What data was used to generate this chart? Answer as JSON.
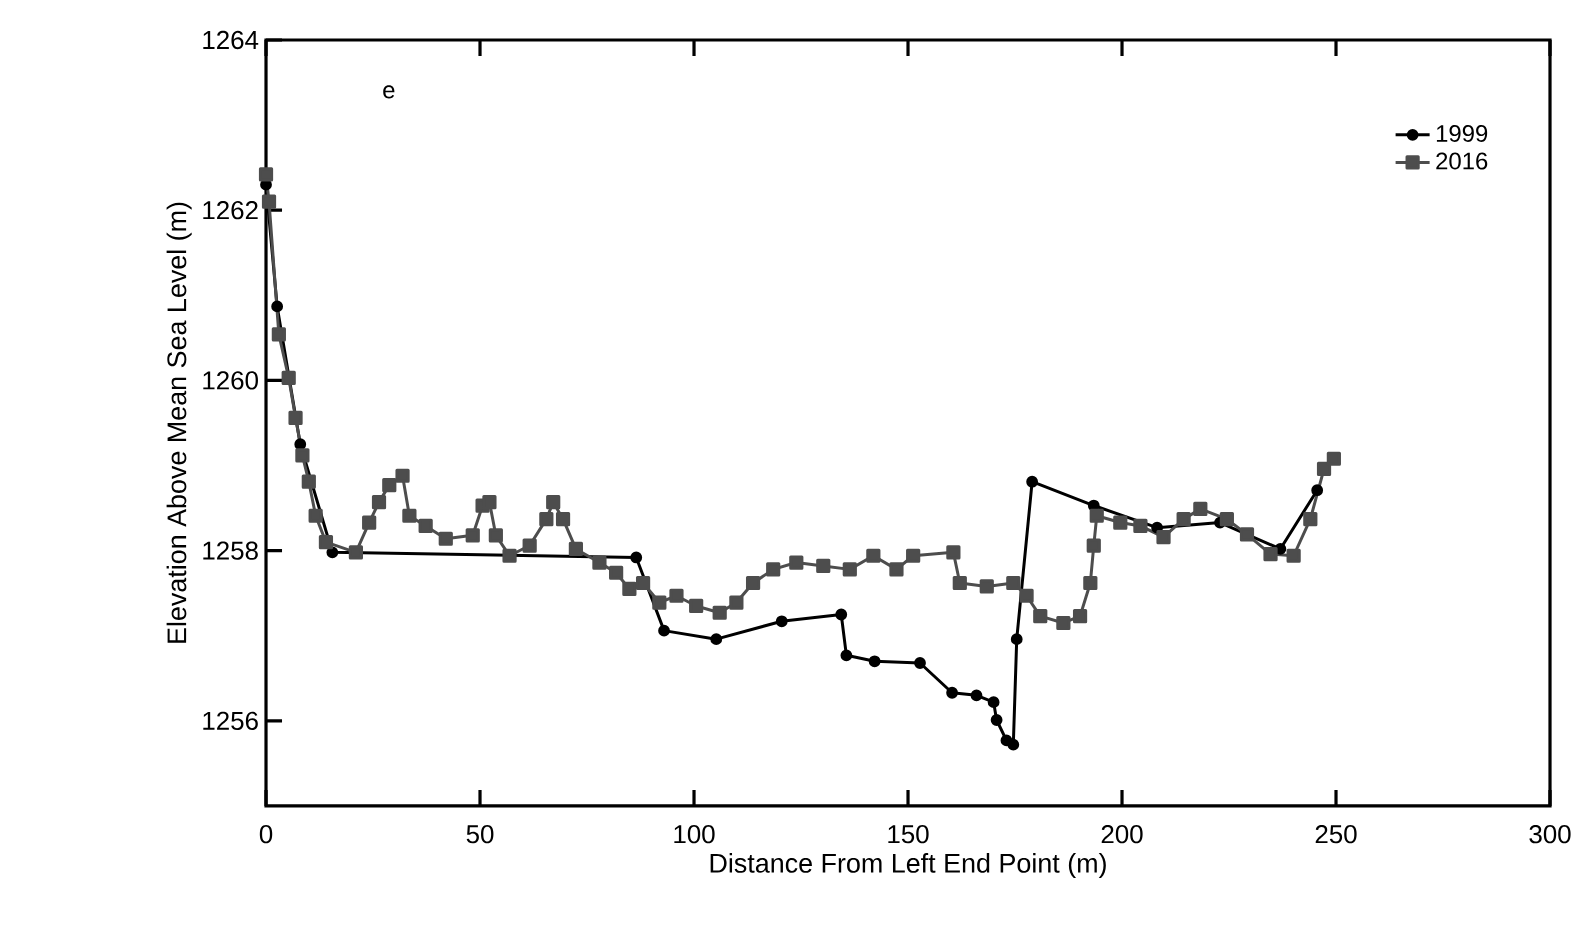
{
  "chart_data": {
    "type": "line",
    "xlabel": "Distance From Left End Point (m)",
    "ylabel": "Elevation Above Mean Sea Level (m)",
    "xlim": [
      0,
      300
    ],
    "ylim": [
      1255,
      1264
    ],
    "xticks": [
      0,
      50,
      100,
      150,
      200,
      250,
      300
    ],
    "yticks": [
      1256,
      1258,
      1260,
      1262,
      1264
    ],
    "legend": "top right",
    "grid": false,
    "annotations": [
      "e"
    ],
    "series": [
      {
        "name": "1999",
        "color": "#000000",
        "marker": "circle",
        "x": [
          0,
          2.6,
          8.0,
          15.5,
          86.5,
          93.0,
          105.2,
          120.5,
          134.4,
          135.6,
          142.2,
          152.8,
          160.3,
          166.0,
          170.0,
          170.7,
          173.0,
          174.6,
          175.4,
          179.0,
          193.4,
          208.2,
          222.9,
          237.0,
          245.6
        ],
        "values": [
          1262.3,
          1260.87,
          1259.25,
          1257.98,
          1257.92,
          1257.06,
          1256.96,
          1257.17,
          1257.25,
          1256.77,
          1256.7,
          1256.68,
          1256.33,
          1256.3,
          1256.22,
          1256.01,
          1255.77,
          1255.72,
          1256.96,
          1258.81,
          1258.53,
          1258.27,
          1258.33,
          1258.02,
          1258.71
        ]
      },
      {
        "name": "2016",
        "color": "#4d4d4d",
        "marker": "square",
        "x": [
          0,
          0.7,
          3.0,
          5.3,
          6.9,
          8.5,
          10.0,
          11.6,
          14.0,
          21.0,
          24.1,
          26.4,
          28.8,
          31.9,
          33.5,
          37.3,
          42.0,
          48.3,
          50.6,
          52.2,
          53.7,
          56.9,
          61.6,
          65.5,
          67.1,
          69.4,
          72.4,
          77.9,
          81.8,
          84.9,
          88.1,
          91.9,
          95.9,
          100.5,
          106.0,
          109.9,
          113.8,
          118.5,
          123.9,
          130.2,
          136.4,
          141.9,
          147.3,
          151.2,
          160.6,
          162.1,
          168.4,
          174.6,
          177.7,
          180.9,
          186.3,
          190.2,
          192.6,
          193.4,
          194.1,
          199.6,
          204.3,
          209.7,
          214.4,
          218.3,
          224.5,
          229.2,
          234.7,
          240.1,
          244.0,
          247.2,
          249.5
        ],
        "values": [
          1262.42,
          1262.1,
          1260.54,
          1260.03,
          1259.56,
          1259.12,
          1258.81,
          1258.41,
          1258.1,
          1257.98,
          1258.33,
          1258.57,
          1258.77,
          1258.88,
          1258.41,
          1258.29,
          1258.14,
          1258.18,
          1258.53,
          1258.57,
          1258.18,
          1257.94,
          1258.06,
          1258.37,
          1258.57,
          1258.37,
          1258.02,
          1257.86,
          1257.74,
          1257.55,
          1257.62,
          1257.39,
          1257.47,
          1257.35,
          1257.27,
          1257.39,
          1257.62,
          1257.78,
          1257.86,
          1257.82,
          1257.78,
          1257.94,
          1257.78,
          1257.94,
          1257.98,
          1257.62,
          1257.58,
          1257.62,
          1257.47,
          1257.23,
          1257.15,
          1257.23,
          1257.62,
          1258.06,
          1258.41,
          1258.33,
          1258.29,
          1258.16,
          1258.37,
          1258.49,
          1258.37,
          1258.19,
          1257.96,
          1257.94,
          1258.37,
          1258.96,
          1259.08
        ]
      }
    ]
  }
}
